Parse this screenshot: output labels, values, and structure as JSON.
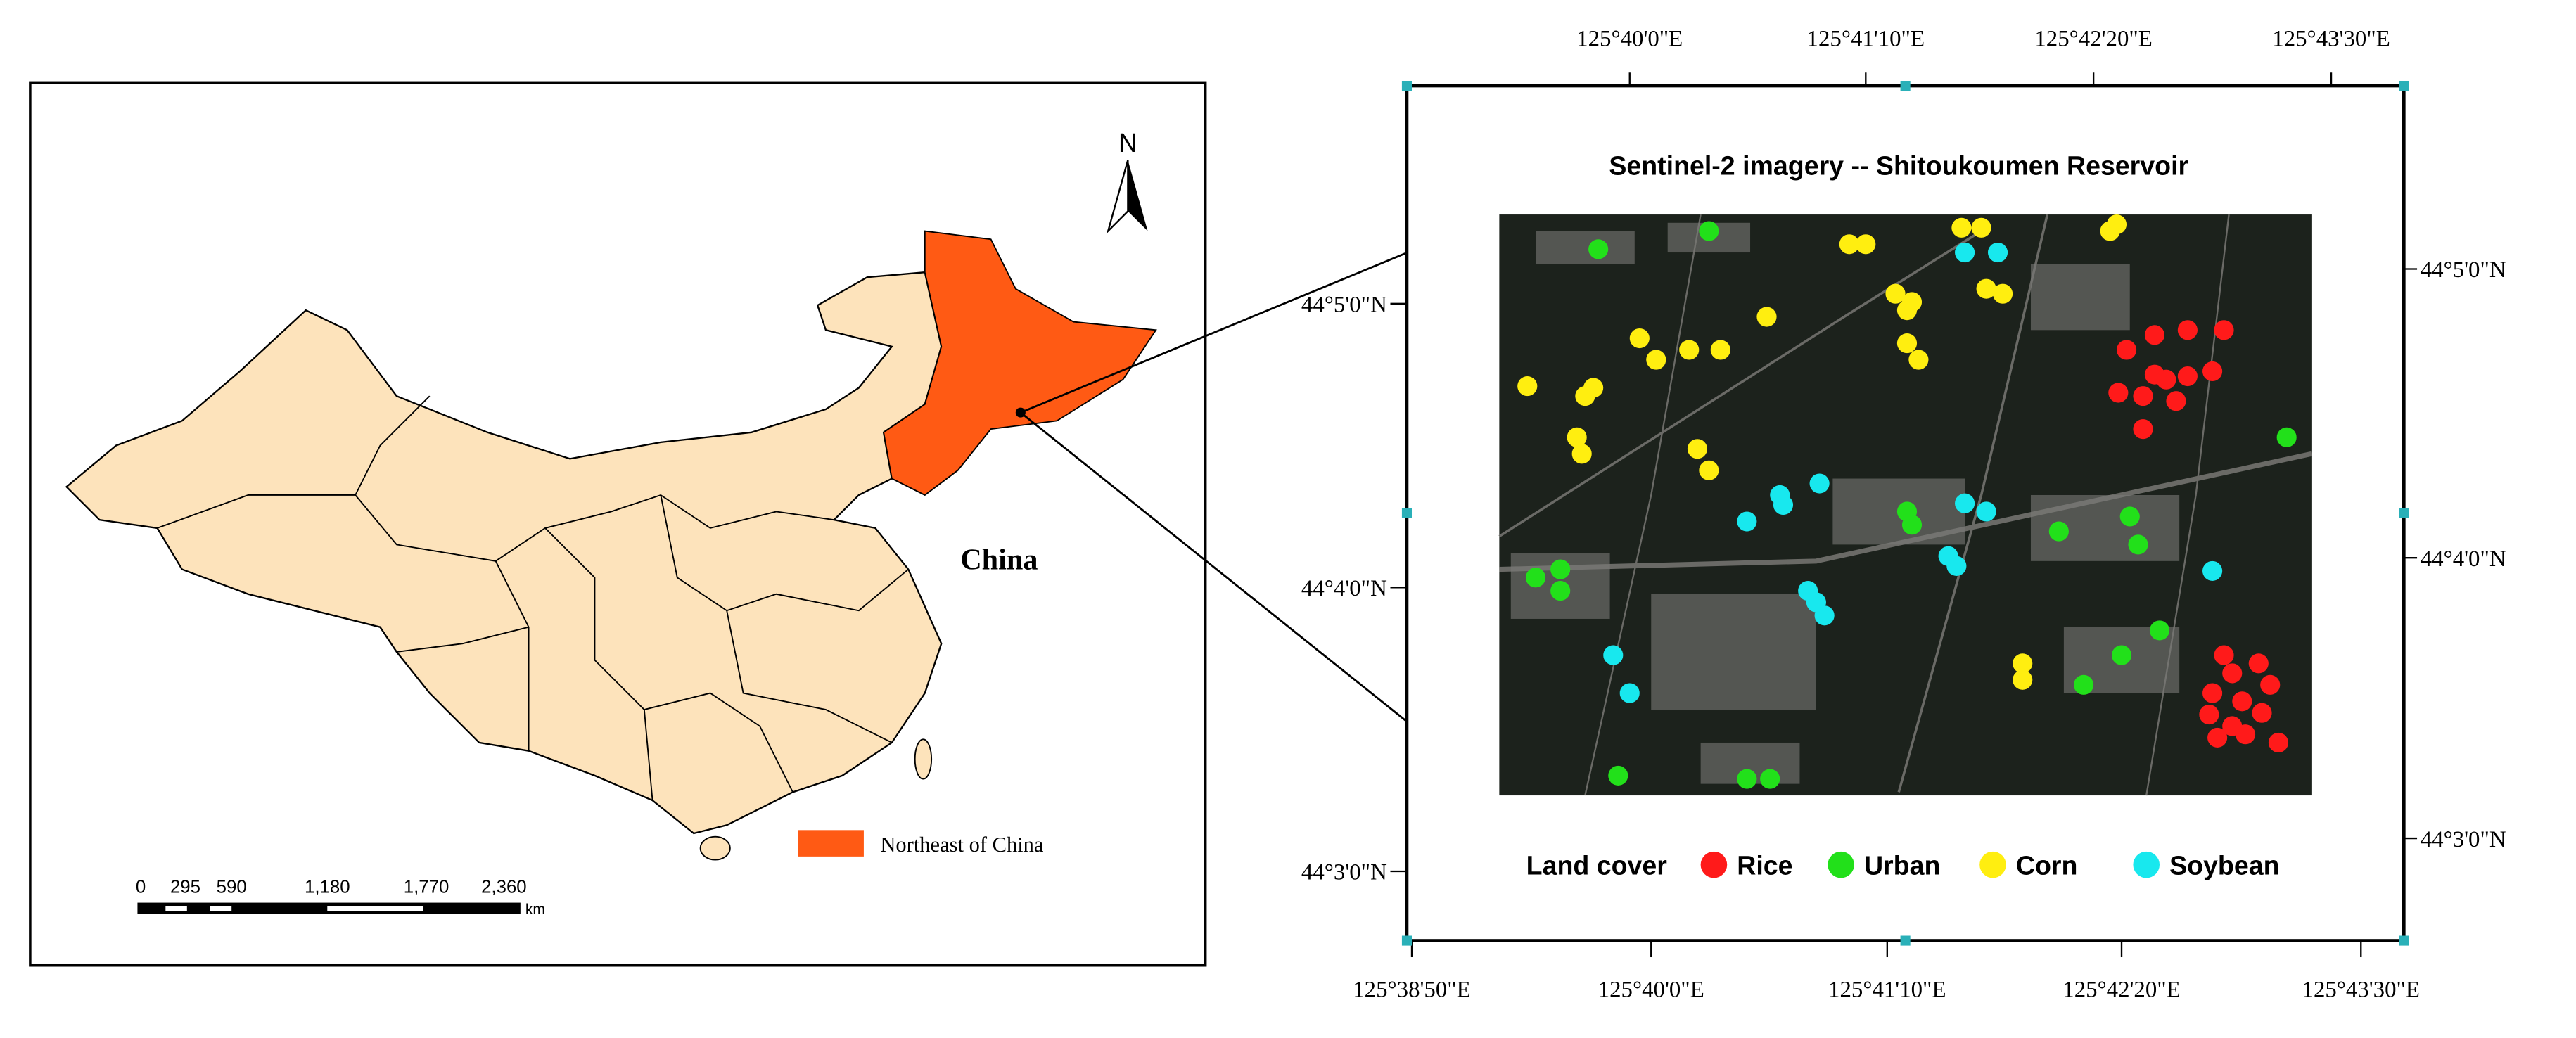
{
  "left_map": {
    "north_label": "N",
    "country_label": "China",
    "legend": {
      "label": "Northeast of China",
      "color": "#ff5a14"
    },
    "scale_bar": {
      "ticks": [
        "0",
        "295",
        "590",
        "1,180",
        "1,770",
        "2,360"
      ],
      "unit": "km"
    }
  },
  "right_map": {
    "title": "Sentinel-2 imagery -- Shitoukoumen Reservoir",
    "top_longitudes": [
      "125°40'0\"E",
      "125°41'10\"E",
      "125°42'20\"E",
      "125°43'30\"E"
    ],
    "bottom_longitudes": [
      "125°38'50\"E",
      "125°40'0\"E",
      "125°41'10\"E",
      "125°42'20\"E",
      "125°43'30\"E"
    ],
    "left_latitudes": [
      "44°5'0\"N",
      "44°4'0\"N",
      "44°3'0\"N"
    ],
    "right_latitudes": [
      "44°5'0\"N",
      "44°4'0\"N",
      "44°3'0\"N"
    ],
    "legend": {
      "title": "Land cover",
      "classes": [
        {
          "name": "Rice",
          "color": "#ff1a1a"
        },
        {
          "name": "Urban",
          "color": "#22e01a"
        },
        {
          "name": "Corn",
          "color": "#ffee10"
        },
        {
          "name": "Soybean",
          "color": "#18e8ee"
        }
      ]
    }
  }
}
